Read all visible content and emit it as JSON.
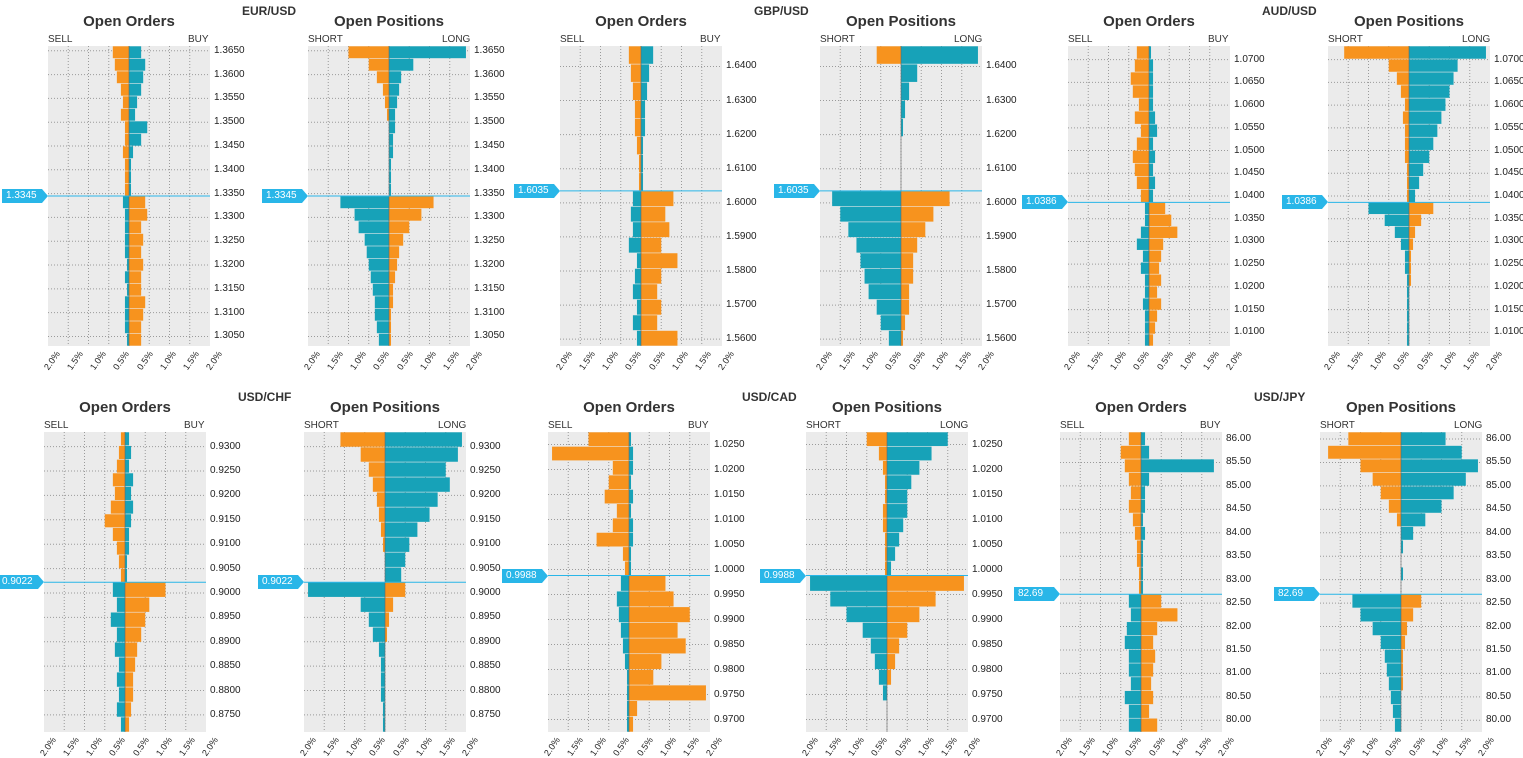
{
  "colors": {
    "orange": "#f7931e",
    "teal": "#17a2b8",
    "price_line": "#29b6e8",
    "plot_bg": "#ebebeb"
  },
  "labels": {
    "open_orders": "Open Orders",
    "open_positions": "Open Positions",
    "sell": "SELL",
    "buy": "BUY",
    "short": "SHORT",
    "long": "LONG"
  },
  "x_ticks": [
    "2.0%",
    "1.5%",
    "1.0%",
    "0.5%",
    "0.5%",
    "1.0%",
    "1.5%",
    "2.0%"
  ],
  "pairs": [
    {
      "name": "EUR/USD",
      "price": "1.3345",
      "ticks": [
        "1.3650",
        "1.3600",
        "1.3550",
        "1.3500",
        "1.3450",
        "1.3400",
        "1.3350",
        "1.3300",
        "1.3250",
        "1.3200",
        "1.3150",
        "1.3100",
        "1.3050"
      ]
    },
    {
      "name": "GBP/USD",
      "price": "1.6035",
      "ticks": [
        "1.6400",
        "1.6300",
        "1.6200",
        "1.6100",
        "1.6000",
        "1.5900",
        "1.5800",
        "1.5700",
        "1.5600"
      ]
    },
    {
      "name": "AUD/USD",
      "price": "1.0386",
      "ticks": [
        "1.0700",
        "1.0650",
        "1.0600",
        "1.0550",
        "1.0500",
        "1.0450",
        "1.0400",
        "1.0350",
        "1.0300",
        "1.0250",
        "1.0200",
        "1.0150",
        "1.0100"
      ]
    },
    {
      "name": "USD/CHF",
      "price": "0.9022",
      "ticks": [
        "0.9300",
        "0.9250",
        "0.9200",
        "0.9150",
        "0.9100",
        "0.9050",
        "0.9000",
        "0.8950",
        "0.8900",
        "0.8850",
        "0.8800",
        "0.8750"
      ]
    },
    {
      "name": "USD/CAD",
      "price": "0.9988",
      "ticks": [
        "1.0250",
        "1.0200",
        "1.0150",
        "1.0100",
        "1.0050",
        "1.0000",
        "0.9950",
        "0.9900",
        "0.9850",
        "0.9800",
        "0.9750",
        "0.9700"
      ]
    },
    {
      "name": "USD/JPY",
      "price": "82.69",
      "ticks": [
        "86.00",
        "85.50",
        "85.00",
        "84.50",
        "84.00",
        "83.50",
        "83.00",
        "82.50",
        "82.00",
        "81.50",
        "81.00",
        "80.50",
        "80.00"
      ]
    }
  ],
  "chart_data": {
    "type": "bar",
    "orientation": "horizontal",
    "x_range_pct": [
      -2.0,
      2.0
    ],
    "description_of_values": "Percent of open orders / positions per price level, left side = SELL/SHORT, right side = BUY/LONG",
    "charts": [
      {
        "pair": "EUR/USD",
        "kind": "orders",
        "price": 1.3345,
        "ylim": [
          1.303,
          1.366
        ],
        "above": {
          "left": [
            0.1,
            0.1,
            0.1,
            0.15,
            0.1,
            0.1,
            0.2,
            0.15,
            0.2,
            0.3,
            0.35,
            0.4
          ],
          "right": [
            0.05,
            0.05,
            0.05,
            0.1,
            0.3,
            0.45,
            0.15,
            0.2,
            0.3,
            0.35,
            0.4,
            0.3
          ]
        },
        "below": {
          "left": [
            0.15,
            0.1,
            0.1,
            0.1,
            0.1,
            0.05,
            0.1,
            0.05,
            0.1,
            0.1,
            0.1,
            0.05
          ],
          "right": [
            0.4,
            0.45,
            0.3,
            0.35,
            0.3,
            0.35,
            0.3,
            0.3,
            0.4,
            0.35,
            0.3,
            0.3
          ]
        }
      },
      {
        "pair": "EUR/USD",
        "kind": "positions",
        "price": 1.3345,
        "ylim": [
          1.303,
          1.366
        ],
        "above": {
          "left": [
            0.0,
            0.0,
            0.0,
            0.0,
            0.0,
            0.0,
            0.05,
            0.1,
            0.15,
            0.3,
            0.5,
            1.0
          ],
          "right": [
            0.05,
            0.05,
            0.05,
            0.1,
            0.1,
            0.15,
            0.15,
            0.2,
            0.25,
            0.3,
            0.6,
            1.9
          ]
        },
        "below": {
          "left": [
            1.2,
            0.85,
            0.75,
            0.6,
            0.55,
            0.5,
            0.45,
            0.4,
            0.35,
            0.35,
            0.3,
            0.25
          ],
          "right": [
            1.1,
            0.8,
            0.5,
            0.35,
            0.25,
            0.2,
            0.15,
            0.1,
            0.1,
            0.05,
            0.05,
            0.05
          ]
        }
      },
      {
        "pair": "GBP/USD",
        "kind": "orders",
        "price": 1.6035,
        "ylim": [
          1.558,
          1.646
        ],
        "above": {
          "left": [
            0.05,
            0.05,
            0.1,
            0.15,
            0.15,
            0.2,
            0.25,
            0.3
          ],
          "right": [
            0.05,
            0.05,
            0.05,
            0.1,
            0.1,
            0.15,
            0.2,
            0.3
          ]
        },
        "below": {
          "left": [
            0.2,
            0.25,
            0.2,
            0.3,
            0.1,
            0.15,
            0.2,
            0.1,
            0.2,
            0.1
          ],
          "right": [
            0.8,
            0.6,
            0.7,
            0.5,
            0.9,
            0.5,
            0.4,
            0.5,
            0.4,
            0.9
          ]
        }
      },
      {
        "pair": "GBP/USD",
        "kind": "positions",
        "price": 1.6035,
        "ylim": [
          1.558,
          1.646
        ],
        "above": {
          "left": [
            0.0,
            0.0,
            0.0,
            0.0,
            0.0,
            0.0,
            0.0,
            0.6
          ],
          "right": [
            0.0,
            0.0,
            0.0,
            0.05,
            0.1,
            0.2,
            0.4,
            1.9
          ]
        },
        "below": {
          "left": [
            1.7,
            1.5,
            1.3,
            1.1,
            1.0,
            0.9,
            0.8,
            0.6,
            0.5,
            0.3
          ],
          "right": [
            1.2,
            0.8,
            0.6,
            0.4,
            0.3,
            0.3,
            0.2,
            0.2,
            0.1,
            0.05
          ]
        }
      },
      {
        "pair": "AUD/USD",
        "kind": "orders",
        "price": 1.0386,
        "ylim": [
          1.007,
          1.073
        ],
        "above": {
          "left": [
            0.2,
            0.3,
            0.35,
            0.4,
            0.3,
            0.2,
            0.35,
            0.25,
            0.4,
            0.45,
            0.35,
            0.3
          ],
          "right": [
            0.1,
            0.15,
            0.1,
            0.15,
            0.1,
            0.2,
            0.15,
            0.1,
            0.1,
            0.1,
            0.1,
            0.05
          ]
        },
        "below": {
          "left": [
            0.1,
            0.1,
            0.2,
            0.3,
            0.15,
            0.2,
            0.1,
            0.1,
            0.15,
            0.1,
            0.1,
            0.1
          ],
          "right": [
            0.4,
            0.55,
            0.7,
            0.35,
            0.3,
            0.25,
            0.3,
            0.2,
            0.3,
            0.2,
            0.15,
            0.1
          ]
        }
      },
      {
        "pair": "AUD/USD",
        "kind": "positions",
        "price": 1.0386,
        "ylim": [
          1.007,
          1.073
        ],
        "above": {
          "left": [
            0.05,
            0.05,
            0.05,
            0.1,
            0.1,
            0.1,
            0.15,
            0.1,
            0.2,
            0.3,
            0.5,
            1.6
          ],
          "right": [
            0.15,
            0.25,
            0.35,
            0.5,
            0.6,
            0.7,
            0.8,
            0.9,
            1.0,
            1.1,
            1.2,
            1.9
          ]
        },
        "below": {
          "left": [
            1.0,
            0.6,
            0.35,
            0.2,
            0.1,
            0.1,
            0.05,
            0.05,
            0.05,
            0.05,
            0.05,
            0.05
          ],
          "right": [
            0.6,
            0.3,
            0.15,
            0.1,
            0.05,
            0.05,
            0.05,
            0.0,
            0.0,
            0.0,
            0.0,
            0.0
          ]
        }
      },
      {
        "pair": "USD/CHF",
        "kind": "orders",
        "price": 0.9022,
        "ylim": [
          0.8715,
          0.933
        ],
        "above": {
          "left": [
            0.1,
            0.15,
            0.2,
            0.3,
            0.5,
            0.35,
            0.25,
            0.3,
            0.2,
            0.15,
            0.1
          ],
          "right": [
            0.05,
            0.05,
            0.1,
            0.1,
            0.15,
            0.2,
            0.15,
            0.2,
            0.1,
            0.15,
            0.1
          ]
        },
        "below": {
          "left": [
            0.3,
            0.2,
            0.35,
            0.2,
            0.25,
            0.15,
            0.2,
            0.15,
            0.2,
            0.1
          ],
          "right": [
            1.0,
            0.6,
            0.5,
            0.4,
            0.3,
            0.25,
            0.2,
            0.2,
            0.15,
            0.1
          ]
        }
      },
      {
        "pair": "USD/CHF",
        "kind": "positions",
        "price": 0.9022,
        "ylim": [
          0.8715,
          0.933
        ],
        "above": {
          "left": [
            0.0,
            0.0,
            0.05,
            0.1,
            0.15,
            0.2,
            0.3,
            0.4,
            0.6,
            1.1
          ],
          "right": [
            0.4,
            0.5,
            0.6,
            0.8,
            1.1,
            1.3,
            1.6,
            1.5,
            1.8,
            1.9
          ]
        },
        "below": {
          "left": [
            1.9,
            0.6,
            0.4,
            0.3,
            0.15,
            0.1,
            0.1,
            0.1,
            0.05,
            0.05
          ],
          "right": [
            0.5,
            0.2,
            0.1,
            0.05,
            0.0,
            0.0,
            0.0,
            0.0,
            0.0,
            0.0
          ]
        }
      },
      {
        "pair": "USD/CAD",
        "kind": "orders",
        "price": 0.9988,
        "ylim": [
          0.9675,
          1.0275
        ],
        "above": {
          "left": [
            0.1,
            0.15,
            0.8,
            0.4,
            0.3,
            0.6,
            0.5,
            0.4,
            1.9,
            1.0
          ],
          "right": [
            0.05,
            0.05,
            0.1,
            0.1,
            0.05,
            0.1,
            0.05,
            0.1,
            0.1,
            0.05
          ]
        },
        "below": {
          "left": [
            0.2,
            0.3,
            0.25,
            0.2,
            0.15,
            0.1,
            0.05,
            0.05,
            0.05,
            0.05
          ],
          "right": [
            0.9,
            1.1,
            1.5,
            1.2,
            1.4,
            0.8,
            0.6,
            1.9,
            0.2,
            0.1
          ]
        }
      },
      {
        "pair": "USD/CAD",
        "kind": "positions",
        "price": 0.9988,
        "ylim": [
          0.9675,
          1.0275
        ],
        "above": {
          "left": [
            0.05,
            0.05,
            0.05,
            0.1,
            0.1,
            0.05,
            0.05,
            0.1,
            0.2,
            0.5
          ],
          "right": [
            0.1,
            0.2,
            0.3,
            0.4,
            0.5,
            0.5,
            0.6,
            0.8,
            1.1,
            1.5
          ]
        },
        "below": {
          "left": [
            1.9,
            1.4,
            1.0,
            0.6,
            0.4,
            0.3,
            0.2,
            0.1,
            0.0,
            0.0
          ],
          "right": [
            1.9,
            1.2,
            0.8,
            0.5,
            0.3,
            0.2,
            0.1,
            0.0,
            0.0,
            0.0
          ]
        }
      },
      {
        "pair": "USD/JPY",
        "kind": "orders",
        "price": 82.69,
        "ylim": [
          79.75,
          86.15
        ],
        "above": {
          "left": [
            0.05,
            0.05,
            0.1,
            0.1,
            0.15,
            0.2,
            0.3,
            0.25,
            0.3,
            0.4,
            0.5,
            0.3
          ],
          "right": [
            0.05,
            0.05,
            0.05,
            0.05,
            0.1,
            0.05,
            0.1,
            0.1,
            0.2,
            1.8,
            0.2,
            0.1
          ]
        },
        "below": {
          "left": [
            0.3,
            0.25,
            0.35,
            0.4,
            0.3,
            0.3,
            0.25,
            0.4,
            0.3,
            0.3
          ],
          "right": [
            0.5,
            0.9,
            0.4,
            0.3,
            0.35,
            0.3,
            0.25,
            0.3,
            0.2,
            0.4
          ]
        }
      },
      {
        "pair": "USD/JPY",
        "kind": "positions",
        "price": 82.69,
        "ylim": [
          79.75,
          86.15
        ],
        "above": {
          "left": [
            0.0,
            0.0,
            0.0,
            0.0,
            0.0,
            0.1,
            0.3,
            0.5,
            0.7,
            1.0,
            1.8,
            1.3
          ],
          "right": [
            0.0,
            0.05,
            0.0,
            0.05,
            0.3,
            0.6,
            1.0,
            1.3,
            1.6,
            1.9,
            1.5,
            1.1
          ]
        },
        "below": {
          "left": [
            1.2,
            1.0,
            0.7,
            0.5,
            0.4,
            0.35,
            0.3,
            0.25,
            0.2,
            0.15
          ],
          "right": [
            0.5,
            0.3,
            0.15,
            0.1,
            0.05,
            0.05,
            0.05,
            0.0,
            0.0,
            0.0
          ]
        }
      }
    ]
  }
}
